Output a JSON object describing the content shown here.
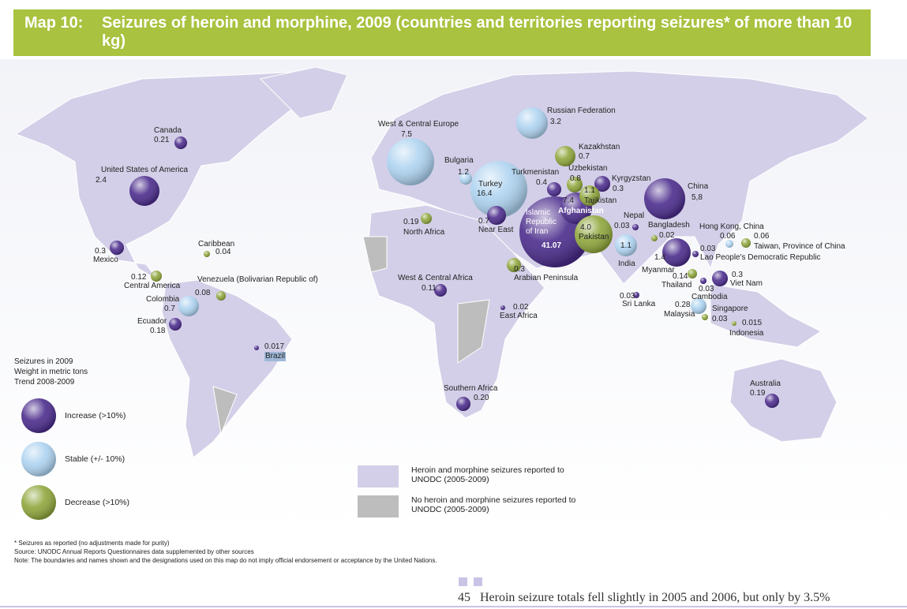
{
  "title": {
    "number": "Map 10:",
    "text": "Seizures of heroin and morphine, 2009 (countries and territories reporting seizures* of more than 10 kg)"
  },
  "markers": [
    {
      "name": "Canada",
      "value": "0.21",
      "color": "#4b2c8c"
    },
    {
      "name": "United States of America",
      "value": "2.4",
      "color": "#4b2c8c"
    },
    {
      "name": "Mexico",
      "value": "0.3",
      "color": "#4b2c8c"
    },
    {
      "name": "Caribbean",
      "value": "0.04",
      "color": "#8fa63c"
    },
    {
      "name": "Central America",
      "value": "0.12",
      "color": "#8fa63c"
    },
    {
      "name": "Venezuela (Bolivarian Republic of)",
      "value": "0.08",
      "color": "#8fa63c"
    },
    {
      "name": "Colombia",
      "value": "0.7",
      "color": "#aed3f0"
    },
    {
      "name": "Ecuador",
      "value": "0.18",
      "color": "#4b2c8c"
    },
    {
      "name": "Brazil",
      "value": "0.017",
      "color": "#4b2c8c"
    },
    {
      "name": "West & Central Europe",
      "value": "7.5",
      "color": "#aed3f0"
    },
    {
      "name": "Bulgaria",
      "value": "1.2",
      "color": "#aed3f0"
    },
    {
      "name": "Turkey",
      "value": "16.4",
      "color": "#aed3f0"
    },
    {
      "name": "Russian Federation",
      "value": "3.2",
      "color": "#aed3f0"
    },
    {
      "name": "Kazakhstan",
      "value": "0.7",
      "color": "#8fa63c"
    },
    {
      "name": "Uzbekistan",
      "value": "0.8",
      "color": "#8fa63c"
    },
    {
      "name": "Turkmenistan",
      "value": "0.4",
      "color": "#4b2c8c"
    },
    {
      "name": "Kyrgyzstan",
      "value": "0.3",
      "color": "#4b2c8c"
    },
    {
      "name": "Islamic Republic of Iran",
      "value": "41.07",
      "color": "#4b2c8c"
    },
    {
      "name": "Afghanistan",
      "value": "7.4",
      "color": "#4b2c8c"
    },
    {
      "name": "Tajikistan",
      "value": "1.1",
      "color": "#8fa63c"
    },
    {
      "name": "Pakistan",
      "value": "4.0",
      "color": "#8fa63c"
    },
    {
      "name": "Near East",
      "value": "0.7",
      "color": "#4b2c8c"
    },
    {
      "name": "North Africa",
      "value": "0.19",
      "color": "#8fa63c"
    },
    {
      "name": "Arabian Peninsula",
      "value": "0.3",
      "color": "#8fa63c"
    },
    {
      "name": "Nepal",
      "value": "0.03",
      "color": "#4b2c8c"
    },
    {
      "name": "Bangladesh",
      "value": "0.02",
      "color": "#8fa63c"
    },
    {
      "name": "India",
      "value": "1.1",
      "color": "#aed3f0"
    },
    {
      "name": "China",
      "value": "5,8",
      "color": "#4b2c8c"
    },
    {
      "name": "Hong Kong, China",
      "value": "0.06",
      "color": "#aed3f0"
    },
    {
      "name": "Taiwan, Province of China",
      "value": "0.06",
      "color": "#8fa63c"
    },
    {
      "name": "Lao People's Democratic Republic",
      "value": "0.03",
      "color": "#4b2c8c"
    },
    {
      "name": "Myanmar",
      "value": "1.4",
      "color": "#4b2c8c"
    },
    {
      "name": "Thailand",
      "value": "0.14",
      "color": "#8fa63c"
    },
    {
      "name": "Viet Nam",
      "value": "0.3",
      "color": "#4b2c8c"
    },
    {
      "name": "Cambodia",
      "value": "0.03",
      "color": "#4b2c8c"
    },
    {
      "name": "Sri Lanka",
      "value": "0.03",
      "color": "#4b2c8c"
    },
    {
      "name": "Malaysia",
      "value": "0.28",
      "color": "#aed3f0"
    },
    {
      "name": "Singapore",
      "value": "0.03",
      "color": "#8fa63c"
    },
    {
      "name": "Indonesia",
      "value": "0.015",
      "color": "#8fa63c"
    },
    {
      "name": "West & Central Africa",
      "value": "0.11",
      "color": "#4b2c8c"
    },
    {
      "name": "East Africa",
      "value": "0.02",
      "color": "#4b2c8c"
    },
    {
      "name": "Southern Africa",
      "value": "0.20",
      "color": "#4b2c8c"
    },
    {
      "name": "Australia",
      "value": "0.19",
      "color": "#4b2c8c"
    }
  ],
  "legend": {
    "heading": [
      "Seizures in 2009",
      "Weight in metric tons",
      "Trend 2008-2009"
    ],
    "items": [
      {
        "label": "Increase (>10%)",
        "color": "#4b2c8c"
      },
      {
        "label": "Stable (+/- 10%)",
        "color": "#aed3f0"
      },
      {
        "label": "Decrease (>10%)",
        "color": "#8fa63c"
      }
    ]
  },
  "area_legend": [
    {
      "label": "Heroin and morphine seizures reported to UNODC (2005-2009)",
      "color": "#d3cfe8"
    },
    {
      "label": "No heroin and morphine seizures reported to UNODC (2005-2009)",
      "color": "#bdbdbd"
    }
  ],
  "notes": [
    "* Seizures as reported (no adjustments made for purity)",
    "Source: UNODC Annual Reports Questionnaires data supplemented by other sources",
    "Note: The boundaries and names shown and the designations used on this map do not imply official endorsement or acceptance by the United Nations."
  ],
  "footer": {
    "page": "45",
    "text": "Heroin seizure totals fell slightly in 2005 and 2006, but only by 3.5%"
  }
}
